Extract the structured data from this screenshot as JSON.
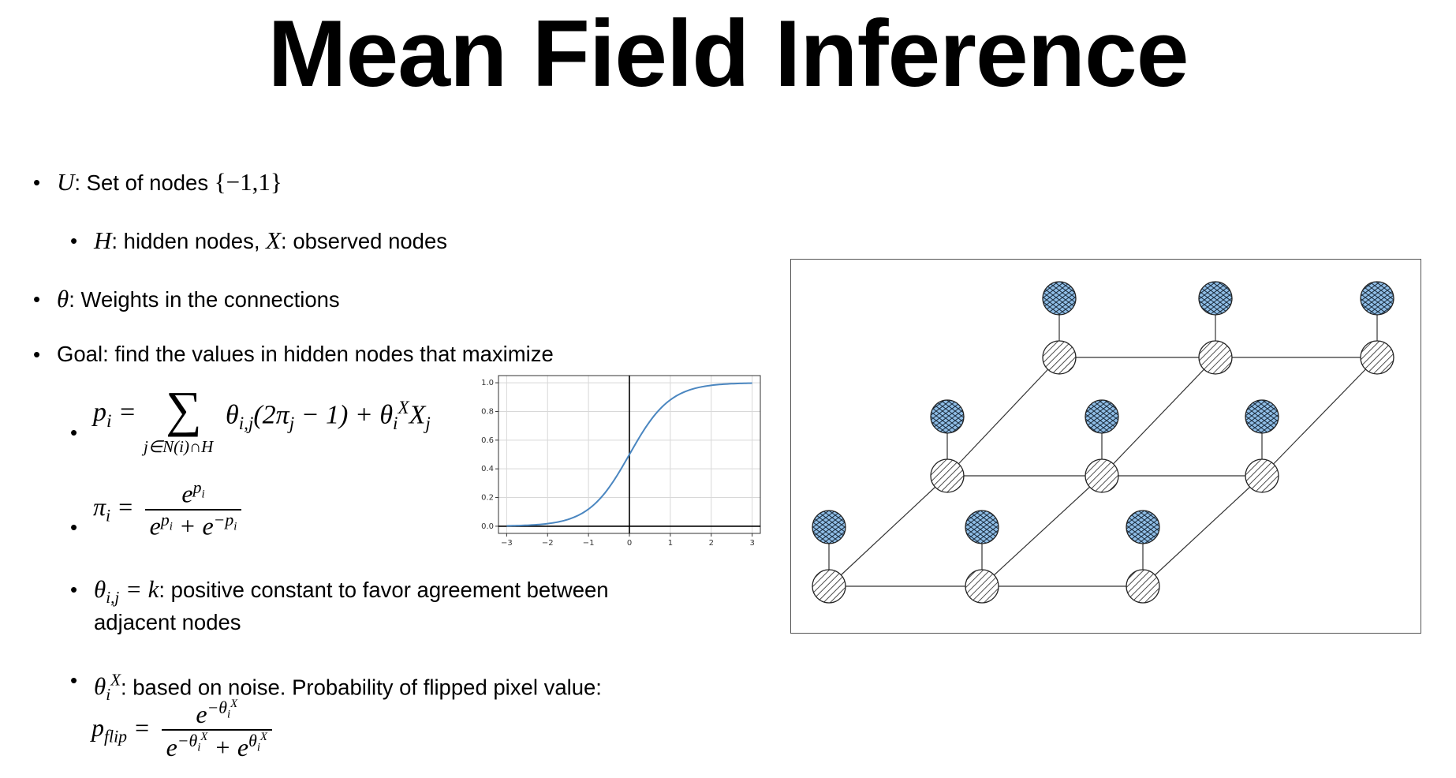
{
  "slide": {
    "title": "Mean Field Inference",
    "bullets": {
      "u_var": "U",
      "u_text": ": Set of nodes ",
      "u_set": "{−1,1}",
      "h_var": "H",
      "h_text": ": hidden nodes, ",
      "x_var": "X",
      "x_text": ": observed nodes",
      "theta_var": "θ",
      "theta_text": ": Weights in the connections",
      "goal_text": "Goal: find the values in hidden nodes that maximize",
      "k_text": ": positive constant to favor agreement between",
      "k_text2": "adjacent nodes",
      "noise_text": ": based on noise. Probability of flipped pixel value:"
    },
    "bullet_symbol": "•"
  },
  "chart_data": {
    "type": "line",
    "series": [
      {
        "values_x": [
          -3,
          -2.5,
          -2,
          -1.5,
          -1,
          -0.5,
          0,
          0.5,
          1,
          1.5,
          2,
          2.5,
          3
        ],
        "values_y": [
          0.002,
          0.007,
          0.018,
          0.047,
          0.119,
          0.269,
          0.5,
          0.731,
          0.881,
          0.953,
          0.982,
          0.993,
          0.998
        ],
        "color": "#4a86c0"
      }
    ],
    "xticks": [
      "−3",
      "−2",
      "−1",
      "0",
      "1",
      "2",
      "3"
    ],
    "yticks": [
      "0.0",
      "0.2",
      "0.4",
      "0.6",
      "0.8",
      "1.0"
    ],
    "xlim": [
      -3.2,
      3.2
    ],
    "ylim": [
      -0.05,
      1.05
    ],
    "grid": true,
    "title": "",
    "xlabel": "",
    "ylabel": ""
  },
  "graph": {
    "hidden_color": "#ffffff",
    "observed_color": "#8fbde6"
  }
}
